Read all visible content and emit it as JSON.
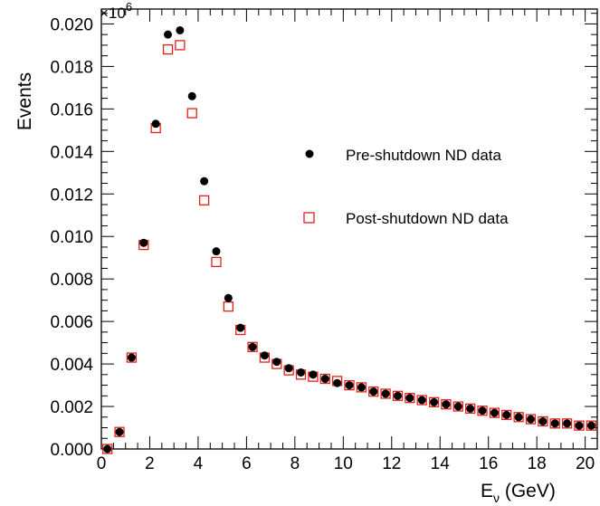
{
  "chart_data": {
    "type": "scatter",
    "title": "",
    "xlabel": "E",
    "xlabel_sub": "ν",
    "xlabel_unit": " (GeV)",
    "ylabel": "Events",
    "y_multiplier_base": "×10",
    "y_multiplier_exp": "6",
    "xlim": [
      0,
      20.5
    ],
    "ylim": [
      0,
      0.0207
    ],
    "xticks": [
      0,
      2,
      4,
      6,
      8,
      10,
      12,
      14,
      16,
      18,
      20
    ],
    "xtick_labels": [
      "0",
      "2",
      "4",
      "6",
      "8",
      "10",
      "12",
      "14",
      "16",
      "18",
      "20"
    ],
    "yticks": [
      0,
      0.002,
      0.004,
      0.006,
      0.008,
      0.01,
      0.012,
      0.014,
      0.016,
      0.018,
      0.02
    ],
    "ytick_labels": [
      "0.000",
      "0.002",
      "0.004",
      "0.006",
      "0.008",
      "0.010",
      "0.012",
      "0.014",
      "0.016",
      "0.018",
      "0.020"
    ],
    "grid": false,
    "legend_position": "right-middle",
    "x": [
      0.25,
      0.75,
      1.25,
      1.75,
      2.25,
      2.75,
      3.25,
      3.75,
      4.25,
      4.75,
      5.25,
      5.75,
      6.25,
      6.75,
      7.25,
      7.75,
      8.25,
      8.75,
      9.25,
      9.75,
      10.25,
      10.75,
      11.25,
      11.75,
      12.25,
      12.75,
      13.25,
      13.75,
      14.25,
      14.75,
      15.25,
      15.75,
      16.25,
      16.75,
      17.25,
      17.75,
      18.25,
      18.75,
      19.25,
      19.75,
      20.25
    ],
    "series": [
      {
        "name": "Pre-shutdown ND data",
        "marker": "filled-circle",
        "color": "#000000",
        "values": [
          0.0,
          0.0008,
          0.0043,
          0.0097,
          0.0153,
          0.0195,
          0.0197,
          0.0166,
          0.0126,
          0.0093,
          0.0071,
          0.0057,
          0.0048,
          0.0044,
          0.0041,
          0.0038,
          0.0036,
          0.0035,
          0.0033,
          0.0031,
          0.003,
          0.0029,
          0.0027,
          0.0026,
          0.0025,
          0.0024,
          0.0023,
          0.0022,
          0.0021,
          0.002,
          0.0019,
          0.0018,
          0.0017,
          0.0016,
          0.0015,
          0.0014,
          0.0013,
          0.0012,
          0.0012,
          0.0011,
          0.0011
        ]
      },
      {
        "name": "Post-shutdown ND data",
        "marker": "open-square",
        "color": "#e0211b",
        "values": [
          0.0,
          0.0008,
          0.0043,
          0.0096,
          0.0151,
          0.0188,
          0.019,
          0.0158,
          0.0117,
          0.0088,
          0.0067,
          0.0056,
          0.0048,
          0.0043,
          0.004,
          0.0037,
          0.0035,
          0.0034,
          0.0033,
          0.0032,
          0.003,
          0.0029,
          0.0027,
          0.0026,
          0.0025,
          0.0024,
          0.0023,
          0.0022,
          0.0021,
          0.002,
          0.0019,
          0.0018,
          0.0017,
          0.0016,
          0.0015,
          0.0014,
          0.0013,
          0.0012,
          0.0012,
          0.0011,
          0.0011
        ]
      }
    ]
  }
}
